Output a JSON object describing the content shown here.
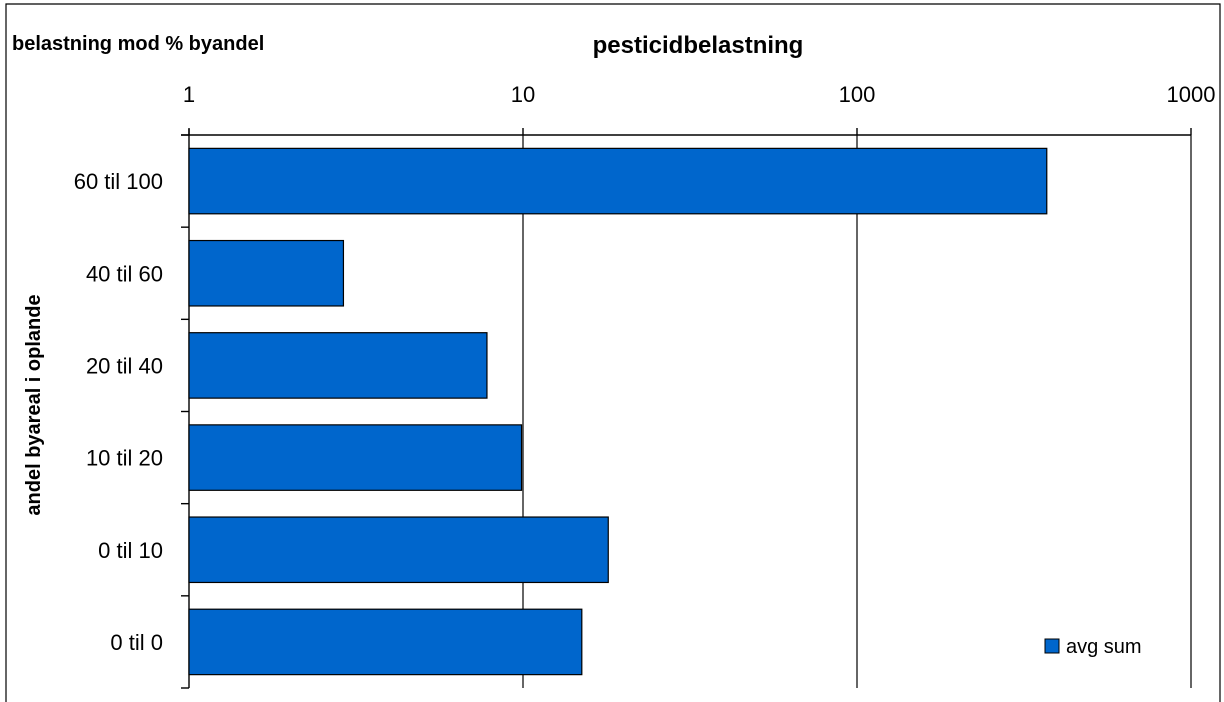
{
  "header_title": "belastning mod % byandel",
  "chart_data": {
    "type": "bar",
    "orientation": "horizontal",
    "title": "pesticidbelastning",
    "xlabel": "",
    "ylabel": "andel byareal i oplande",
    "xscale": "log",
    "xlim": [
      1,
      1000
    ],
    "xticks": [
      "1",
      "10",
      "100",
      "1000"
    ],
    "xtick_values": [
      1,
      10,
      100,
      1000
    ],
    "x_axis_position": "top",
    "grid": "vertical major gridlines",
    "categories": [
      "60 til 100",
      "40 til 60",
      "20 til 40",
      "10 til 20",
      "0 til 10",
      "0 til 0"
    ],
    "series": [
      {
        "name": "avg sum",
        "color": "#0066CC",
        "values": [
          370,
          2.9,
          7.8,
          9.9,
          18,
          15
        ]
      }
    ],
    "legend": {
      "position": "bottom-right",
      "entries": [
        "avg sum"
      ]
    }
  }
}
